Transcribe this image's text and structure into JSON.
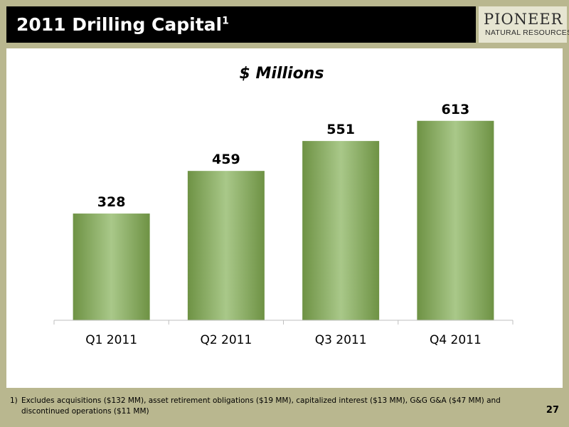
{
  "slide": {
    "title": "2011 Drilling Capital",
    "title_sup": "1",
    "logo_name": "PIONEER",
    "logo_sub": "NATURAL RESOURCES",
    "footnote_mark": "1)",
    "footnote_text": "Excludes acquisitions ($132 MM), asset retirement obligations ($19 MM), capitalized interest ($13 MM), G&G G&A ($47 MM) and discontinued operations ($11 MM)",
    "page_number": "27"
  },
  "colors": {
    "background": "#b9b78f",
    "header": "#000000",
    "bar_dark": "#6e9244",
    "bar_light": "#a9c889"
  },
  "chart_data": {
    "type": "bar",
    "title": "$ Millions",
    "categories": [
      "Q1 2011",
      "Q2 2011",
      "Q3 2011",
      "Q4 2011"
    ],
    "values": [
      328,
      459,
      551,
      613
    ],
    "data_labels": [
      "328",
      "459",
      "551",
      "613"
    ],
    "ylim": [
      0,
      700
    ],
    "grid": false,
    "legend": "none"
  }
}
